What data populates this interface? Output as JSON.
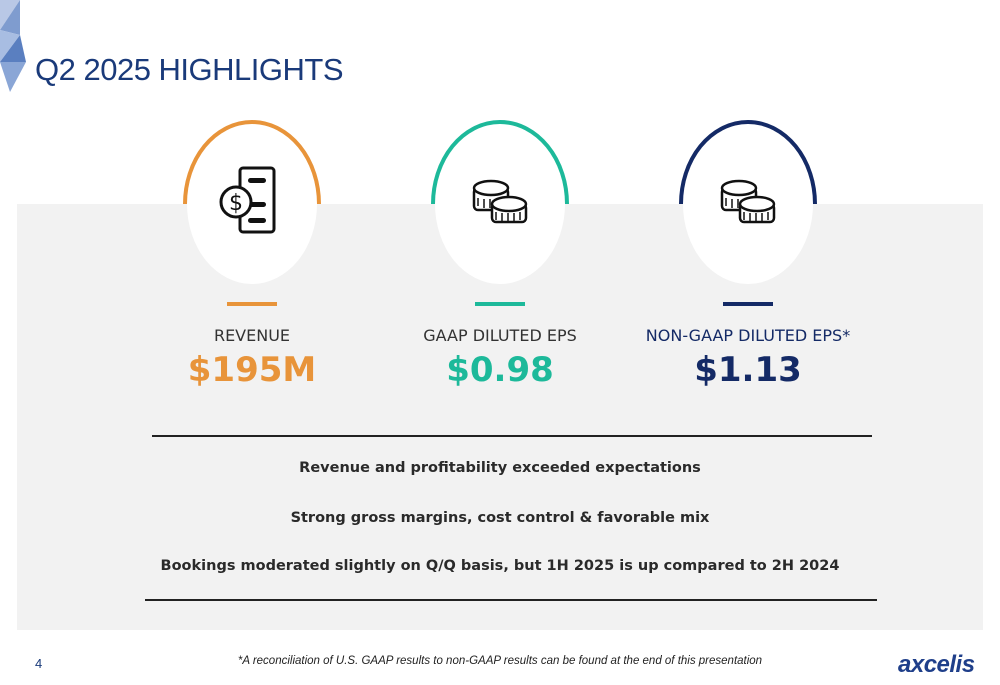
{
  "title": "Q2 2025 HIGHLIGHTS",
  "metrics": [
    {
      "label": "REVENUE",
      "value": "$195M",
      "color": "#e8943a",
      "icon": "money-document-icon"
    },
    {
      "label": "GAAP DILUTED EPS",
      "value": "$0.98",
      "color": "#1db99a",
      "icon": "coins-icon"
    },
    {
      "label": "NON-GAAP DILUTED EPS*",
      "value": "$1.13",
      "color": "#142a66",
      "icon": "coins-icon"
    }
  ],
  "points": [
    "Revenue and profitability exceeded expectations",
    "Strong gross margins, cost control & favorable mix",
    "Bookings moderated slightly on Q/Q basis, but 1H 2025 is up compared to 2H 2024"
  ],
  "page_number": "4",
  "footnote": "*A reconciliation of U.S. GAAP results to non-GAAP results can be found at the end of this presentation",
  "logo_text": "axcelis",
  "colors": {
    "brand": "#1a3a7a",
    "panel_bg": "#f2f2f2"
  }
}
